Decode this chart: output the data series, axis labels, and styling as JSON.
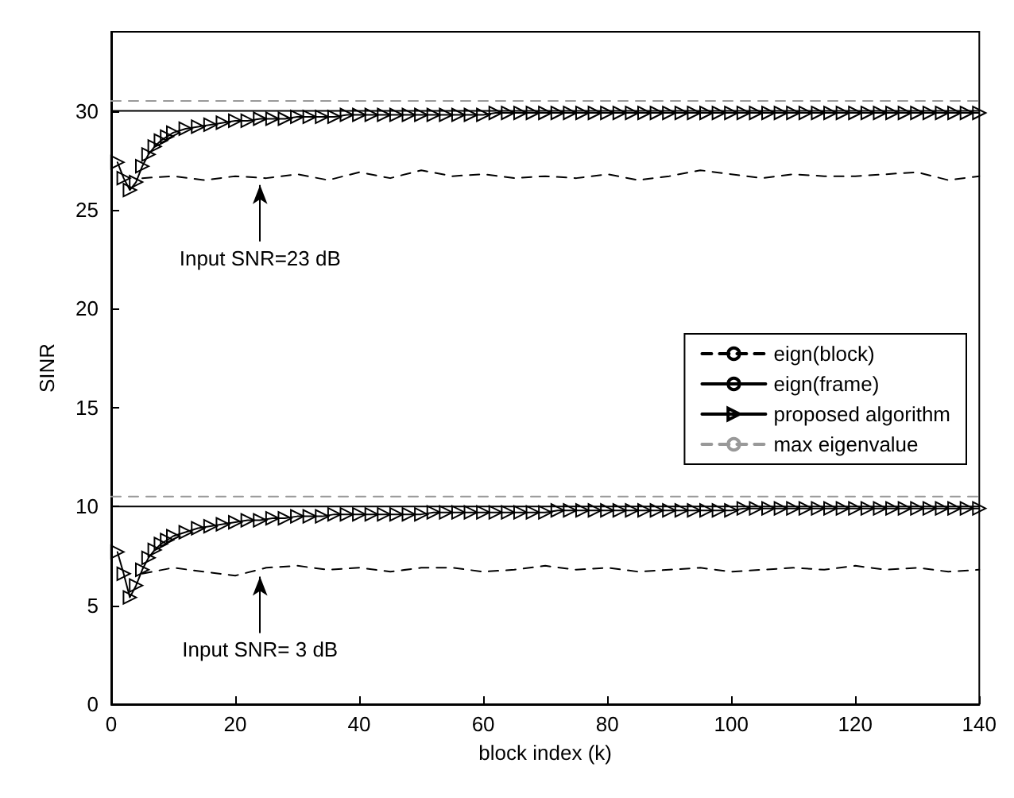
{
  "chart_data": {
    "type": "line",
    "xlabel": "block index (k)",
    "ylabel": "SINR",
    "xlim": [
      0,
      140
    ],
    "xticks": [
      0,
      20,
      40,
      60,
      80,
      100,
      120,
      140
    ],
    "ylim": [
      0,
      34
    ],
    "yticks": [
      0,
      5,
      10,
      15,
      20,
      25,
      30
    ],
    "grid": false,
    "legend": "right",
    "annotations": [
      {
        "text": "Input SNR=23 dB",
        "x": 24,
        "y": 26.6
      },
      {
        "text": "Input SNR= 3 dB",
        "x": 24,
        "y": 6.8
      }
    ],
    "series": [
      {
        "name": "eign(block)",
        "color": "#000000",
        "line_style": "dashed",
        "marker": "none",
        "x": [
          5,
          10,
          15,
          20,
          25,
          30,
          35,
          40,
          45,
          50,
          55,
          60,
          65,
          70,
          75,
          80,
          85,
          90,
          95,
          100,
          105,
          110,
          115,
          120,
          125,
          130,
          135,
          140
        ],
        "values": [
          26.6,
          26.7,
          26.5,
          26.7,
          26.6,
          26.8,
          26.5,
          26.9,
          26.6,
          27.0,
          26.7,
          26.8,
          26.6,
          26.7,
          26.6,
          26.8,
          26.5,
          26.7,
          27.0,
          26.8,
          26.6,
          26.8,
          26.7,
          26.7,
          26.8,
          26.9,
          26.5,
          26.7
        ]
      },
      {
        "color": "#000000",
        "line_style": "dashed",
        "marker": "none",
        "x": [
          5,
          10,
          15,
          20,
          25,
          30,
          35,
          40,
          45,
          50,
          55,
          60,
          65,
          70,
          75,
          80,
          85,
          90,
          95,
          100,
          105,
          110,
          115,
          120,
          125,
          130,
          135,
          140
        ],
        "values": [
          6.6,
          6.9,
          6.7,
          6.5,
          6.9,
          7.0,
          6.8,
          6.9,
          6.7,
          6.9,
          6.9,
          6.7,
          6.8,
          7.0,
          6.8,
          6.9,
          6.7,
          6.8,
          6.9,
          6.7,
          6.8,
          6.9,
          6.8,
          7.0,
          6.8,
          6.9,
          6.7,
          6.8
        ]
      },
      {
        "name": "eign(frame)",
        "color": "#000000",
        "line_style": "solid",
        "marker": "none",
        "x": [
          0,
          140
        ],
        "values": [
          30,
          30
        ]
      },
      {
        "color": "#000000",
        "line_style": "solid",
        "marker": "none",
        "x": [
          0,
          140
        ],
        "values": [
          10,
          10
        ]
      },
      {
        "name": "proposed algorithm",
        "color": "#000000",
        "line_style": "solid",
        "marker": "triangle",
        "x": [
          1,
          2,
          3,
          4,
          5,
          6,
          7,
          8,
          9,
          10,
          12,
          14,
          16,
          18,
          20,
          22,
          24,
          26,
          28,
          30,
          32,
          34,
          36,
          38,
          40,
          42,
          44,
          46,
          48,
          50,
          52,
          54,
          56,
          58,
          60,
          62,
          64,
          66,
          68,
          70,
          72,
          74,
          76,
          78,
          80,
          82,
          84,
          86,
          88,
          90,
          92,
          94,
          96,
          98,
          100,
          102,
          104,
          106,
          108,
          110,
          112,
          114,
          116,
          118,
          120,
          122,
          124,
          126,
          128,
          130,
          132,
          134,
          136,
          138,
          140
        ],
        "values": [
          27.4,
          26.6,
          26.0,
          26.4,
          27.2,
          27.8,
          28.2,
          28.5,
          28.7,
          28.9,
          29.1,
          29.2,
          29.3,
          29.4,
          29.5,
          29.5,
          29.6,
          29.6,
          29.6,
          29.7,
          29.7,
          29.7,
          29.7,
          29.8,
          29.8,
          29.8,
          29.8,
          29.8,
          29.8,
          29.8,
          29.8,
          29.8,
          29.8,
          29.8,
          29.8,
          29.9,
          29.9,
          29.9,
          29.9,
          29.9,
          29.9,
          29.9,
          29.9,
          29.9,
          29.9,
          29.9,
          29.9,
          29.9,
          29.9,
          29.9,
          29.9,
          29.9,
          29.9,
          29.9,
          29.9,
          29.9,
          29.9,
          29.9,
          29.9,
          29.9,
          29.9,
          29.9,
          29.9,
          29.9,
          29.9,
          29.9,
          29.9,
          29.9,
          29.9,
          29.9,
          29.9,
          29.9,
          29.9,
          29.9,
          29.9
        ]
      },
      {
        "color": "#000000",
        "line_style": "solid",
        "marker": "triangle",
        "x": [
          1,
          2,
          3,
          4,
          5,
          6,
          7,
          8,
          9,
          10,
          12,
          14,
          16,
          18,
          20,
          22,
          24,
          26,
          28,
          30,
          32,
          34,
          36,
          38,
          40,
          42,
          44,
          46,
          48,
          50,
          52,
          54,
          56,
          58,
          60,
          62,
          64,
          66,
          68,
          70,
          72,
          74,
          76,
          78,
          80,
          82,
          84,
          86,
          88,
          90,
          92,
          94,
          96,
          98,
          100,
          102,
          104,
          106,
          108,
          110,
          112,
          114,
          116,
          118,
          120,
          122,
          124,
          126,
          128,
          130,
          132,
          134,
          136,
          138,
          140
        ],
        "values": [
          7.7,
          6.6,
          5.4,
          6.0,
          6.8,
          7.4,
          7.8,
          8.1,
          8.3,
          8.5,
          8.7,
          8.9,
          9.0,
          9.1,
          9.2,
          9.3,
          9.3,
          9.4,
          9.4,
          9.5,
          9.5,
          9.5,
          9.6,
          9.6,
          9.6,
          9.6,
          9.6,
          9.6,
          9.6,
          9.6,
          9.7,
          9.7,
          9.7,
          9.7,
          9.7,
          9.7,
          9.7,
          9.7,
          9.7,
          9.7,
          9.8,
          9.8,
          9.8,
          9.8,
          9.8,
          9.8,
          9.8,
          9.8,
          9.8,
          9.8,
          9.8,
          9.8,
          9.8,
          9.8,
          9.8,
          9.9,
          9.9,
          9.9,
          9.9,
          9.9,
          9.9,
          9.9,
          9.9,
          9.9,
          9.9,
          9.9,
          9.9,
          9.9,
          9.9,
          9.9,
          9.9,
          9.9,
          9.9,
          9.9,
          9.9
        ]
      },
      {
        "name": "max eigenvalue",
        "color": "#999999",
        "line_style": "dashed",
        "marker": "none",
        "x": [
          0,
          140
        ],
        "values": [
          30.5,
          30.5
        ]
      },
      {
        "color": "#999999",
        "line_style": "dashed",
        "marker": "none",
        "x": [
          0,
          140
        ],
        "values": [
          10.5,
          10.5
        ]
      }
    ]
  }
}
